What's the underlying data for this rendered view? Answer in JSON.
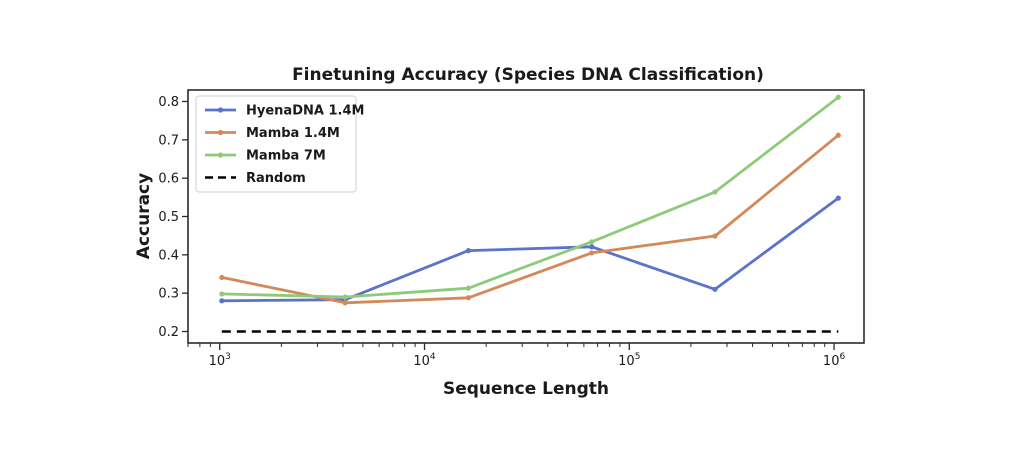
{
  "chart_data": {
    "type": "line",
    "title": "Finetuning Accuracy (Species DNA Classification)",
    "xlabel": "Sequence Length",
    "ylabel": "Accuracy",
    "x_scale": "log",
    "xlim": [
      700,
      1400000
    ],
    "ylim": [
      0.17,
      0.83
    ],
    "x_ticks": [
      {
        "base": "10",
        "exp": "3",
        "value": 1000
      },
      {
        "base": "10",
        "exp": "4",
        "value": 10000
      },
      {
        "base": "10",
        "exp": "5",
        "value": 100000
      },
      {
        "base": "10",
        "exp": "6",
        "value": 1000000
      }
    ],
    "y_ticks": [
      "0.2",
      "0.3",
      "0.4",
      "0.5",
      "0.6",
      "0.7",
      "0.8"
    ],
    "grid": false,
    "legend_position": "top-left",
    "x": [
      1024,
      4096,
      16384,
      65536,
      262144,
      1048576
    ],
    "series": [
      {
        "name": "HyenaDNA 1.4M",
        "color": "#5b73c9",
        "values": [
          0.28,
          0.283,
          0.411,
          0.421,
          0.31,
          0.548
        ]
      },
      {
        "name": "Mamba 1.4M",
        "color": "#d4895a",
        "values": [
          0.341,
          0.275,
          0.288,
          0.405,
          0.449,
          0.712
        ]
      },
      {
        "name": "Mamba 7M",
        "color": "#8dcb7a",
        "values": [
          0.298,
          0.29,
          0.313,
          0.434,
          0.564,
          0.811
        ]
      }
    ],
    "reference": {
      "name": "Random",
      "color": "#000000",
      "value": 0.2,
      "style": "dashed"
    }
  }
}
